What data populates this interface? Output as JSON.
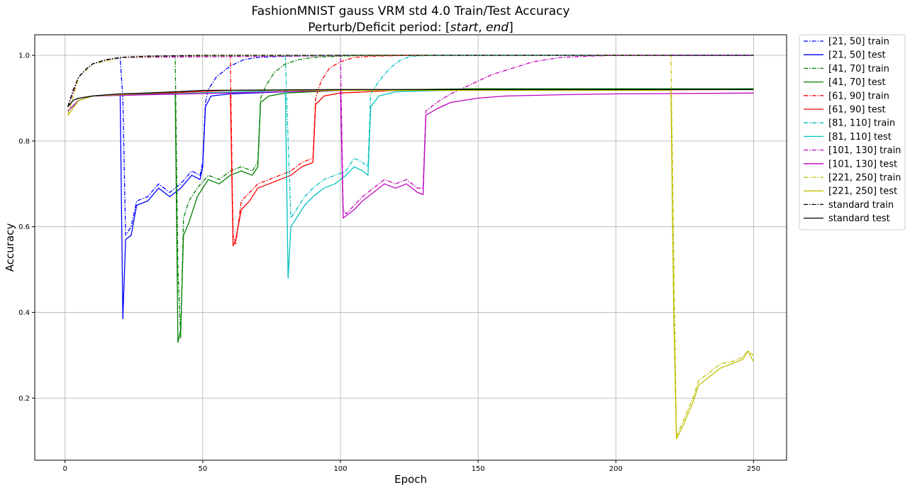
{
  "chart_data": {
    "type": "line",
    "title": "FashionMNIST gauss VRM std 4.0 Train/Test Accuracy",
    "subtitle_prefix": "Perturb/Deficit period: [",
    "subtitle_start": "start",
    "subtitle_sep": ", ",
    "subtitle_end": "end",
    "subtitle_suffix": "]",
    "xlabel": "Epoch",
    "ylabel": "Accuracy",
    "xlim": [
      -11,
      262
    ],
    "ylim": [
      0.055,
      1.048
    ],
    "xticks": [
      0,
      50,
      100,
      150,
      200,
      250
    ],
    "yticks": [
      0.2,
      0.4,
      0.6,
      0.8,
      1.0
    ],
    "xtick_labels": [
      "0",
      "50",
      "100",
      "150",
      "200",
      "250"
    ],
    "ytick_labels": [
      "0.2",
      "0.4",
      "0.6",
      "0.8",
      "1.0"
    ],
    "grid": true,
    "legend_position": "outside-right-top",
    "series": [
      {
        "name": "[21, 50] train",
        "color": "#0000ff",
        "style": "dashdot",
        "points": [
          [
            1,
            0.88
          ],
          [
            5,
            0.95
          ],
          [
            10,
            0.98
          ],
          [
            15,
            0.99
          ],
          [
            20,
            0.993
          ],
          [
            21,
            0.9
          ],
          [
            22,
            0.58
          ],
          [
            24,
            0.6
          ],
          [
            26,
            0.66
          ],
          [
            30,
            0.67
          ],
          [
            34,
            0.7
          ],
          [
            38,
            0.68
          ],
          [
            42,
            0.7
          ],
          [
            46,
            0.73
          ],
          [
            49,
            0.72
          ],
          [
            50,
            0.75
          ],
          [
            51,
            0.89
          ],
          [
            52,
            0.92
          ],
          [
            55,
            0.95
          ],
          [
            60,
            0.975
          ],
          [
            65,
            0.99
          ],
          [
            70,
            0.995
          ],
          [
            80,
            0.998
          ],
          [
            100,
            1.0
          ],
          [
            250,
            1.0
          ]
        ]
      },
      {
        "name": "[21, 50] test",
        "color": "#0000ff",
        "style": "solid",
        "points": [
          [
            1,
            0.87
          ],
          [
            5,
            0.895
          ],
          [
            10,
            0.905
          ],
          [
            20,
            0.91
          ],
          [
            21,
            0.385
          ],
          [
            22,
            0.57
          ],
          [
            24,
            0.58
          ],
          [
            26,
            0.65
          ],
          [
            30,
            0.66
          ],
          [
            34,
            0.69
          ],
          [
            38,
            0.67
          ],
          [
            42,
            0.69
          ],
          [
            46,
            0.72
          ],
          [
            49,
            0.71
          ],
          [
            50,
            0.74
          ],
          [
            51,
            0.88
          ],
          [
            53,
            0.905
          ],
          [
            60,
            0.91
          ],
          [
            80,
            0.915
          ],
          [
            100,
            0.918
          ],
          [
            150,
            0.92
          ],
          [
            250,
            0.92
          ]
        ]
      },
      {
        "name": "[41, 70] train",
        "color": "#008000",
        "style": "dashdot",
        "points": [
          [
            1,
            0.88
          ],
          [
            5,
            0.95
          ],
          [
            10,
            0.98
          ],
          [
            20,
            0.995
          ],
          [
            40,
            0.998
          ],
          [
            41,
            0.5
          ],
          [
            42,
            0.34
          ],
          [
            43,
            0.62
          ],
          [
            45,
            0.66
          ],
          [
            48,
            0.69
          ],
          [
            52,
            0.72
          ],
          [
            56,
            0.71
          ],
          [
            60,
            0.73
          ],
          [
            64,
            0.74
          ],
          [
            68,
            0.73
          ],
          [
            70,
            0.75
          ],
          [
            71,
            0.9
          ],
          [
            73,
            0.93
          ],
          [
            76,
            0.96
          ],
          [
            80,
            0.98
          ],
          [
            85,
            0.99
          ],
          [
            90,
            0.995
          ],
          [
            100,
            0.998
          ],
          [
            110,
            1.0
          ],
          [
            250,
            1.0
          ]
        ]
      },
      {
        "name": "[41, 70] test",
        "color": "#008000",
        "style": "solid",
        "points": [
          [
            1,
            0.87
          ],
          [
            5,
            0.895
          ],
          [
            10,
            0.905
          ],
          [
            40,
            0.912
          ],
          [
            41,
            0.33
          ],
          [
            42,
            0.36
          ],
          [
            43,
            0.58
          ],
          [
            45,
            0.61
          ],
          [
            48,
            0.67
          ],
          [
            52,
            0.71
          ],
          [
            56,
            0.7
          ],
          [
            60,
            0.72
          ],
          [
            64,
            0.73
          ],
          [
            68,
            0.72
          ],
          [
            70,
            0.74
          ],
          [
            71,
            0.89
          ],
          [
            74,
            0.905
          ],
          [
            80,
            0.912
          ],
          [
            100,
            0.918
          ],
          [
            150,
            0.922
          ],
          [
            250,
            0.922
          ]
        ]
      },
      {
        "name": "[61, 90] train",
        "color": "#ff0000",
        "style": "dashdot",
        "points": [
          [
            1,
            0.88
          ],
          [
            5,
            0.95
          ],
          [
            10,
            0.98
          ],
          [
            20,
            0.995
          ],
          [
            60,
            0.999
          ],
          [
            61,
            0.58
          ],
          [
            62,
            0.56
          ],
          [
            64,
            0.66
          ],
          [
            67,
            0.68
          ],
          [
            70,
            0.7
          ],
          [
            74,
            0.71
          ],
          [
            78,
            0.72
          ],
          [
            82,
            0.73
          ],
          [
            86,
            0.75
          ],
          [
            90,
            0.76
          ],
          [
            91,
            0.9
          ],
          [
            93,
            0.94
          ],
          [
            96,
            0.97
          ],
          [
            100,
            0.985
          ],
          [
            105,
            0.995
          ],
          [
            112,
            0.998
          ],
          [
            125,
            1.0
          ],
          [
            250,
            1.0
          ]
        ]
      },
      {
        "name": "[61, 90] test",
        "color": "#ff0000",
        "style": "solid",
        "points": [
          [
            1,
            0.87
          ],
          [
            5,
            0.895
          ],
          [
            10,
            0.905
          ],
          [
            60,
            0.918
          ],
          [
            61,
            0.555
          ],
          [
            62,
            0.57
          ],
          [
            64,
            0.64
          ],
          [
            67,
            0.66
          ],
          [
            70,
            0.69
          ],
          [
            74,
            0.7
          ],
          [
            78,
            0.71
          ],
          [
            82,
            0.72
          ],
          [
            86,
            0.74
          ],
          [
            90,
            0.75
          ],
          [
            91,
            0.885
          ],
          [
            94,
            0.905
          ],
          [
            100,
            0.912
          ],
          [
            120,
            0.918
          ],
          [
            250,
            0.92
          ]
        ]
      },
      {
        "name": "[81, 110] train",
        "color": "#00bfbf",
        "style": "dashdot",
        "points": [
          [
            1,
            0.88
          ],
          [
            5,
            0.95
          ],
          [
            10,
            0.98
          ],
          [
            20,
            0.995
          ],
          [
            80,
            0.999
          ],
          [
            81,
            0.8
          ],
          [
            82,
            0.62
          ],
          [
            84,
            0.64
          ],
          [
            87,
            0.67
          ],
          [
            90,
            0.69
          ],
          [
            94,
            0.71
          ],
          [
            98,
            0.72
          ],
          [
            102,
            0.73
          ],
          [
            105,
            0.76
          ],
          [
            108,
            0.75
          ],
          [
            110,
            0.74
          ],
          [
            111,
            0.91
          ],
          [
            114,
            0.94
          ],
          [
            118,
            0.97
          ],
          [
            122,
            0.99
          ],
          [
            126,
            0.998
          ],
          [
            135,
            1.0
          ],
          [
            250,
            1.0
          ]
        ]
      },
      {
        "name": "[81, 110] test",
        "color": "#00bfbf",
        "style": "solid",
        "points": [
          [
            1,
            0.87
          ],
          [
            5,
            0.895
          ],
          [
            10,
            0.905
          ],
          [
            80,
            0.918
          ],
          [
            81,
            0.48
          ],
          [
            82,
            0.6
          ],
          [
            84,
            0.62
          ],
          [
            87,
            0.65
          ],
          [
            90,
            0.67
          ],
          [
            94,
            0.69
          ],
          [
            98,
            0.7
          ],
          [
            102,
            0.72
          ],
          [
            105,
            0.74
          ],
          [
            108,
            0.73
          ],
          [
            110,
            0.72
          ],
          [
            111,
            0.88
          ],
          [
            114,
            0.905
          ],
          [
            120,
            0.915
          ],
          [
            150,
            0.92
          ],
          [
            250,
            0.92
          ]
        ]
      },
      {
        "name": "[101, 130] train",
        "color": "#bf00bf",
        "style": "dashdot",
        "points": [
          [
            1,
            0.88
          ],
          [
            5,
            0.95
          ],
          [
            10,
            0.98
          ],
          [
            20,
            0.995
          ],
          [
            100,
            0.999
          ],
          [
            101,
            0.64
          ],
          [
            102,
            0.63
          ],
          [
            105,
            0.65
          ],
          [
            108,
            0.67
          ],
          [
            112,
            0.69
          ],
          [
            116,
            0.71
          ],
          [
            120,
            0.7
          ],
          [
            124,
            0.71
          ],
          [
            128,
            0.69
          ],
          [
            130,
            0.69
          ],
          [
            131,
            0.87
          ],
          [
            135,
            0.89
          ],
          [
            140,
            0.91
          ],
          [
            145,
            0.925
          ],
          [
            150,
            0.94
          ],
          [
            155,
            0.955
          ],
          [
            160,
            0.965
          ],
          [
            165,
            0.975
          ],
          [
            170,
            0.985
          ],
          [
            175,
            0.99
          ],
          [
            180,
            0.995
          ],
          [
            190,
            0.998
          ],
          [
            200,
            1.0
          ],
          [
            250,
            1.0
          ]
        ]
      },
      {
        "name": "[101, 130] test",
        "color": "#bf00bf",
        "style": "solid",
        "points": [
          [
            1,
            0.87
          ],
          [
            5,
            0.895
          ],
          [
            10,
            0.905
          ],
          [
            100,
            0.918
          ],
          [
            101,
            0.62
          ],
          [
            102,
            0.625
          ],
          [
            105,
            0.64
          ],
          [
            108,
            0.66
          ],
          [
            112,
            0.68
          ],
          [
            116,
            0.7
          ],
          [
            120,
            0.69
          ],
          [
            124,
            0.7
          ],
          [
            128,
            0.68
          ],
          [
            130,
            0.675
          ],
          [
            131,
            0.86
          ],
          [
            135,
            0.875
          ],
          [
            140,
            0.89
          ],
          [
            145,
            0.895
          ],
          [
            150,
            0.9
          ],
          [
            160,
            0.905
          ],
          [
            180,
            0.908
          ],
          [
            200,
            0.91
          ],
          [
            250,
            0.912
          ]
        ]
      },
      {
        "name": "[221, 250] train",
        "color": "#bfbf00",
        "style": "dashdot",
        "points": [
          [
            1,
            0.86
          ],
          [
            5,
            0.95
          ],
          [
            10,
            0.98
          ],
          [
            20,
            0.995
          ],
          [
            40,
            0.999
          ],
          [
            220,
            1.0
          ],
          [
            221,
            0.55
          ],
          [
            222,
            0.11
          ],
          [
            224,
            0.14
          ],
          [
            226,
            0.17
          ],
          [
            228,
            0.2
          ],
          [
            230,
            0.24
          ],
          [
            234,
            0.26
          ],
          [
            238,
            0.28
          ],
          [
            242,
            0.285
          ],
          [
            246,
            0.295
          ],
          [
            248,
            0.31
          ],
          [
            250,
            0.3
          ]
        ]
      },
      {
        "name": "[221, 250] test",
        "color": "#bfbf00",
        "style": "solid",
        "points": [
          [
            1,
            0.86
          ],
          [
            5,
            0.895
          ],
          [
            10,
            0.905
          ],
          [
            50,
            0.918
          ],
          [
            220,
            0.918
          ],
          [
            221,
            0.4
          ],
          [
            222,
            0.105
          ],
          [
            224,
            0.13
          ],
          [
            226,
            0.16
          ],
          [
            228,
            0.19
          ],
          [
            230,
            0.23
          ],
          [
            234,
            0.25
          ],
          [
            238,
            0.27
          ],
          [
            242,
            0.28
          ],
          [
            246,
            0.29
          ],
          [
            248,
            0.31
          ],
          [
            250,
            0.285
          ]
        ]
      },
      {
        "name": "standard train",
        "color": "#000000",
        "style": "dashdot",
        "points": [
          [
            1,
            0.88
          ],
          [
            3,
            0.92
          ],
          [
            5,
            0.95
          ],
          [
            8,
            0.97
          ],
          [
            10,
            0.98
          ],
          [
            15,
            0.99
          ],
          [
            20,
            0.995
          ],
          [
            30,
            0.998
          ],
          [
            50,
            1.0
          ],
          [
            250,
            1.0
          ]
        ]
      },
      {
        "name": "standard test",
        "color": "#000000",
        "style": "solid",
        "points": [
          [
            1,
            0.88
          ],
          [
            3,
            0.895
          ],
          [
            5,
            0.9
          ],
          [
            10,
            0.905
          ],
          [
            20,
            0.91
          ],
          [
            30,
            0.912
          ],
          [
            40,
            0.915
          ],
          [
            50,
            0.918
          ],
          [
            100,
            0.92
          ],
          [
            150,
            0.92
          ],
          [
            200,
            0.92
          ],
          [
            250,
            0.92
          ]
        ]
      }
    ]
  }
}
